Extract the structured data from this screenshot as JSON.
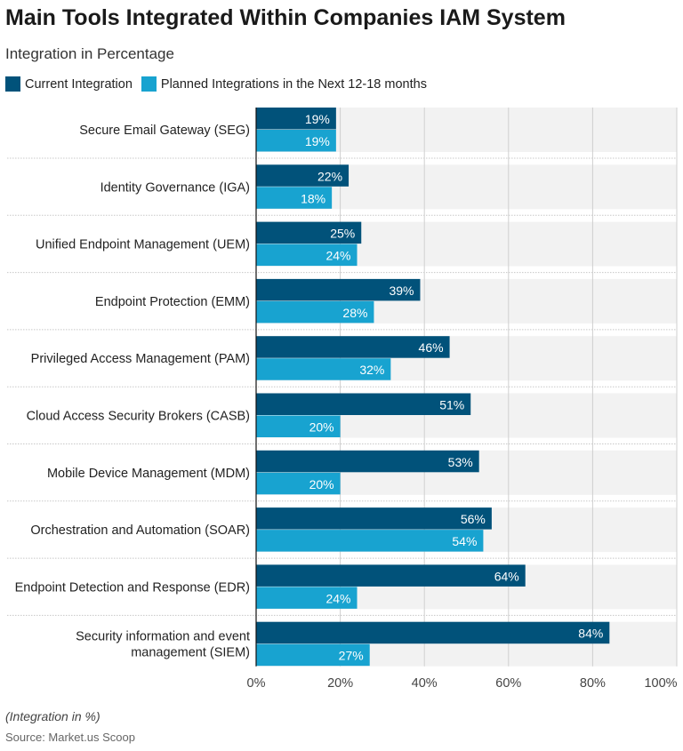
{
  "chart_data": {
    "type": "bar",
    "orientation": "horizontal",
    "title": "Main Tools Integrated Within Companies IAM System",
    "subtitle": "Integration in Percentage",
    "categories": [
      "Secure Email Gateway (SEG)",
      "Identity Governance (IGA)",
      "Unified Endpoint Management (UEM)",
      "Endpoint Protection (EMM)",
      "Privileged Access Management (PAM)",
      "Cloud Access Security Brokers (CASB)",
      "Mobile Device Management (MDM)",
      "Orchestration and Automation (SOAR)",
      "Endpoint Detection and Response (EDR)",
      "Security information and event management (SIEM)"
    ],
    "series": [
      {
        "name": "Current Integration",
        "color": "#01527a",
        "values": [
          19,
          22,
          25,
          39,
          46,
          51,
          53,
          56,
          64,
          84
        ]
      },
      {
        "name": "Planned Integrations in the Next 12-18 months",
        "color": "#18a3d0",
        "values": [
          19,
          18,
          24,
          28,
          32,
          20,
          20,
          54,
          24,
          27
        ]
      }
    ],
    "xlim": [
      0,
      100
    ],
    "xticks": [
      "0%",
      "20%",
      "40%",
      "60%",
      "80%",
      "100%"
    ],
    "grid": true,
    "legend_position": "top-left",
    "note": "(Integration in %)",
    "source": "Source: Market.us Scoop"
  }
}
